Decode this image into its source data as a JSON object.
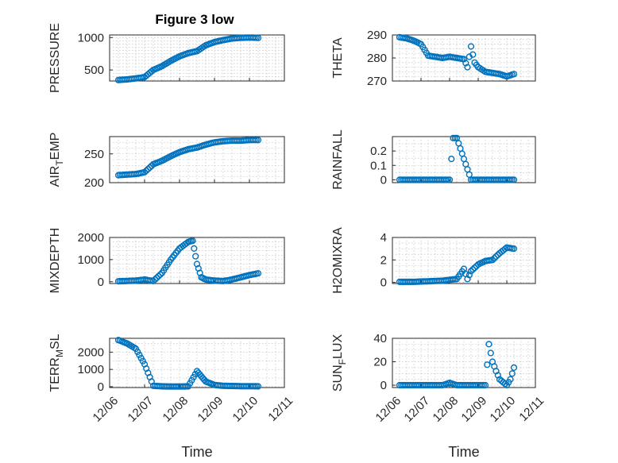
{
  "figure": {
    "title": "Figure 3 low"
  },
  "colors": {
    "marker": "#0072BD",
    "axis": "#262626",
    "grid": "#b5b5b5"
  },
  "chart_data": [
    {
      "type": "scatter",
      "ylabel": "PRESSURE",
      "xlabel": "",
      "grid": true,
      "marker": "circle",
      "xlim": [
        "12/06",
        "12/11"
      ],
      "ylim": [
        330,
        1040
      ],
      "yticks": [
        500,
        1000
      ],
      "ytick_labels": [
        "500",
        "1000"
      ],
      "xticks": [
        "12/06",
        "12/07",
        "12/08",
        "12/09",
        "12/10",
        "12/11"
      ],
      "series": [
        {
          "x": [
            "12/06 06:00",
            "12/06 12:00",
            "12/06 18:00",
            "12/07 00:00",
            "12/07 06:00",
            "12/07 12:00",
            "12/07 18:00",
            "12/08 00:00",
            "12/08 06:00",
            "12/08 12:00",
            "12/08 18:00",
            "12/09 00:00",
            "12/09 06:00",
            "12/09 12:00",
            "12/09 18:00",
            "12/10 00:00",
            "12/10 06:00"
          ],
          "y": [
            345,
            355,
            370,
            390,
            500,
            560,
            640,
            710,
            760,
            790,
            880,
            930,
            960,
            985,
            995,
            1000,
            995
          ]
        }
      ]
    },
    {
      "type": "scatter",
      "ylabel": "THETA",
      "xlabel": "",
      "grid": true,
      "marker": "circle",
      "xlim": [
        "12/06",
        "12/11"
      ],
      "ylim": [
        270,
        290
      ],
      "yticks": [
        270,
        280,
        290
      ],
      "ytick_labels": [
        "270",
        "280",
        "290"
      ],
      "xticks": [
        "12/06",
        "12/07",
        "12/08",
        "12/09",
        "12/10",
        "12/11"
      ],
      "series": [
        {
          "x": [
            "12/06 06:00",
            "12/06 12:00",
            "12/06 18:00",
            "12/07 00:00",
            "12/07 06:00",
            "12/07 12:00",
            "12/07 18:00",
            "12/08 00:00",
            "12/08 06:00",
            "12/08 12:00",
            "12/08 15:00",
            "12/08 18:00",
            "12/08 21:00",
            "12/09 00:00",
            "12/09 06:00",
            "12/09 12:00",
            "12/09 18:00",
            "12/10 00:00",
            "12/10 06:00"
          ],
          "y": [
            289,
            288.5,
            287.5,
            286,
            281,
            280.5,
            280,
            280.5,
            280,
            279.5,
            276,
            285,
            278,
            276,
            274,
            273.5,
            273,
            272,
            273
          ]
        }
      ]
    },
    {
      "type": "scatter",
      "ylabel": "AIR_TEMP",
      "xlabel": "",
      "grid": true,
      "marker": "circle",
      "xlim": [
        "12/06",
        "12/11"
      ],
      "ylim": [
        200,
        280
      ],
      "yticks": [
        200,
        250
      ],
      "ytick_labels": [
        "200",
        "250"
      ],
      "xticks": [
        "12/06",
        "12/07",
        "12/08",
        "12/09",
        "12/10",
        "12/11"
      ],
      "series": [
        {
          "x": [
            "12/06 06:00",
            "12/06 12:00",
            "12/06 18:00",
            "12/07 00:00",
            "12/07 06:00",
            "12/07 12:00",
            "12/07 18:00",
            "12/08 00:00",
            "12/08 06:00",
            "12/08 12:00",
            "12/08 18:00",
            "12/09 00:00",
            "12/09 06:00",
            "12/09 12:00",
            "12/09 18:00",
            "12/10 00:00",
            "12/10 06:00"
          ],
          "y": [
            213,
            214,
            215,
            218,
            232,
            238,
            246,
            253,
            258,
            261,
            266,
            270,
            272,
            273,
            273,
            274,
            274
          ]
        }
      ]
    },
    {
      "type": "scatter",
      "ylabel": "RAINFALL",
      "xlabel": "",
      "grid": true,
      "marker": "circle",
      "xlim": [
        "12/06",
        "12/11"
      ],
      "ylim": [
        -0.02,
        0.3
      ],
      "yticks": [
        0,
        0.1,
        0.2
      ],
      "ytick_labels": [
        "0",
        "0.1",
        "0.2"
      ],
      "xticks": [
        "12/06",
        "12/07",
        "12/08",
        "12/09",
        "12/10",
        "12/11"
      ],
      "series": [
        {
          "x": [
            "12/06 06:00",
            "12/06 18:00",
            "12/07 06:00",
            "12/07 18:00",
            "12/08 00:00",
            "12/08 03:00",
            "12/08 06:00",
            "12/08 18:00",
            "12/09 06:00",
            "12/09 18:00",
            "12/10 06:00"
          ],
          "y": [
            0,
            0,
            0,
            0,
            0,
            0.29,
            0.29,
            0,
            0,
            0,
            0
          ]
        }
      ]
    },
    {
      "type": "scatter",
      "ylabel": "MIXDEPTH",
      "xlabel": "",
      "grid": true,
      "marker": "circle",
      "xlim": [
        "12/06",
        "12/11"
      ],
      "ylim": [
        -80,
        2000
      ],
      "yticks": [
        0,
        1000,
        2000
      ],
      "ytick_labels": [
        "0",
        "1000",
        "2000"
      ],
      "xticks": [
        "12/06",
        "12/07",
        "12/08",
        "12/09",
        "12/10",
        "12/11"
      ],
      "series": [
        {
          "x": [
            "12/06 06:00",
            "12/06 18:00",
            "12/07 00:00",
            "12/07 06:00",
            "12/07 12:00",
            "12/07 18:00",
            "12/08 00:00",
            "12/08 06:00",
            "12/08 09:00",
            "12/08 12:00",
            "12/08 15:00",
            "12/08 18:00",
            "12/09 00:00",
            "12/09 06:00",
            "12/09 12:00",
            "12/09 18:00",
            "12/10 00:00",
            "12/10 06:00"
          ],
          "y": [
            20,
            50,
            100,
            30,
            400,
            1000,
            1500,
            1800,
            1850,
            800,
            200,
            100,
            50,
            30,
            100,
            200,
            300,
            380
          ]
        }
      ]
    },
    {
      "type": "scatter",
      "ylabel": "H2OMIXRA",
      "xlabel": "",
      "grid": true,
      "marker": "circle",
      "xlim": [
        "12/06",
        "12/11"
      ],
      "ylim": [
        -0.1,
        4
      ],
      "yticks": [
        0,
        2,
        4
      ],
      "ytick_labels": [
        "0",
        "2",
        "4"
      ],
      "xticks": [
        "12/06",
        "12/07",
        "12/08",
        "12/09",
        "12/10",
        "12/11"
      ],
      "series": [
        {
          "x": [
            "12/06 06:00",
            "12/06 18:00",
            "12/07 06:00",
            "12/07 18:00",
            "12/08 06:00",
            "12/08 12:00",
            "12/08 15:00",
            "12/08 18:00",
            "12/09 00:00",
            "12/09 06:00",
            "12/09 12:00",
            "12/09 18:00",
            "12/10 00:00",
            "12/10 06:00"
          ],
          "y": [
            0.05,
            0.05,
            0.1,
            0.15,
            0.3,
            1.2,
            0.3,
            1.0,
            1.6,
            1.9,
            2.0,
            2.6,
            3.1,
            3.0
          ]
        }
      ]
    },
    {
      "type": "scatter",
      "ylabel": "TERR_MSL",
      "xlabel": "Time",
      "grid": true,
      "marker": "circle",
      "xlim": [
        "12/06",
        "12/11"
      ],
      "ylim": [
        -50,
        2800
      ],
      "yticks": [
        0,
        1000,
        2000
      ],
      "ytick_labels": [
        "0",
        "1000",
        "2000"
      ],
      "xticks": [
        "12/06",
        "12/07",
        "12/08",
        "12/09",
        "12/10",
        "12/11"
      ],
      "series": [
        {
          "x": [
            "12/06 06:00",
            "12/06 12:00",
            "12/06 18:00",
            "12/07 00:00",
            "12/07 06:00",
            "12/07 12:00",
            "12/07 18:00",
            "12/08 00:00",
            "12/08 06:00",
            "12/08 12:00",
            "12/08 15:00",
            "12/08 18:00",
            "12/09 00:00",
            "12/09 06:00",
            "12/09 12:00",
            "12/09 18:00",
            "12/10 00:00",
            "12/10 06:00"
          ],
          "y": [
            2700,
            2500,
            2200,
            1300,
            50,
            20,
            10,
            10,
            20,
            900,
            600,
            300,
            100,
            50,
            40,
            30,
            30,
            20
          ]
        }
      ]
    },
    {
      "type": "scatter",
      "ylabel": "SUN_FLUX",
      "xlabel": "Time",
      "grid": true,
      "marker": "circle",
      "xlim": [
        "12/06",
        "12/11"
      ],
      "ylim": [
        -2,
        40
      ],
      "yticks": [
        0,
        20,
        40
      ],
      "ytick_labels": [
        "0",
        "20",
        "40"
      ],
      "xticks": [
        "12/06",
        "12/07",
        "12/08",
        "12/09",
        "12/10",
        "12/11"
      ],
      "series": [
        {
          "x": [
            "12/06 06:00",
            "12/06 18:00",
            "12/07 06:00",
            "12/07 18:00",
            "12/08 00:00",
            "12/08 06:00",
            "12/08 18:00",
            "12/09 06:00",
            "12/09 09:00",
            "12/09 12:00",
            "12/09 15:00",
            "12/09 18:00",
            "12/10 00:00",
            "12/10 03:00",
            "12/10 06:00"
          ],
          "y": [
            0,
            0,
            0,
            0,
            2,
            0,
            0,
            0,
            35,
            20,
            12,
            5,
            0,
            5,
            15
          ]
        }
      ]
    }
  ]
}
